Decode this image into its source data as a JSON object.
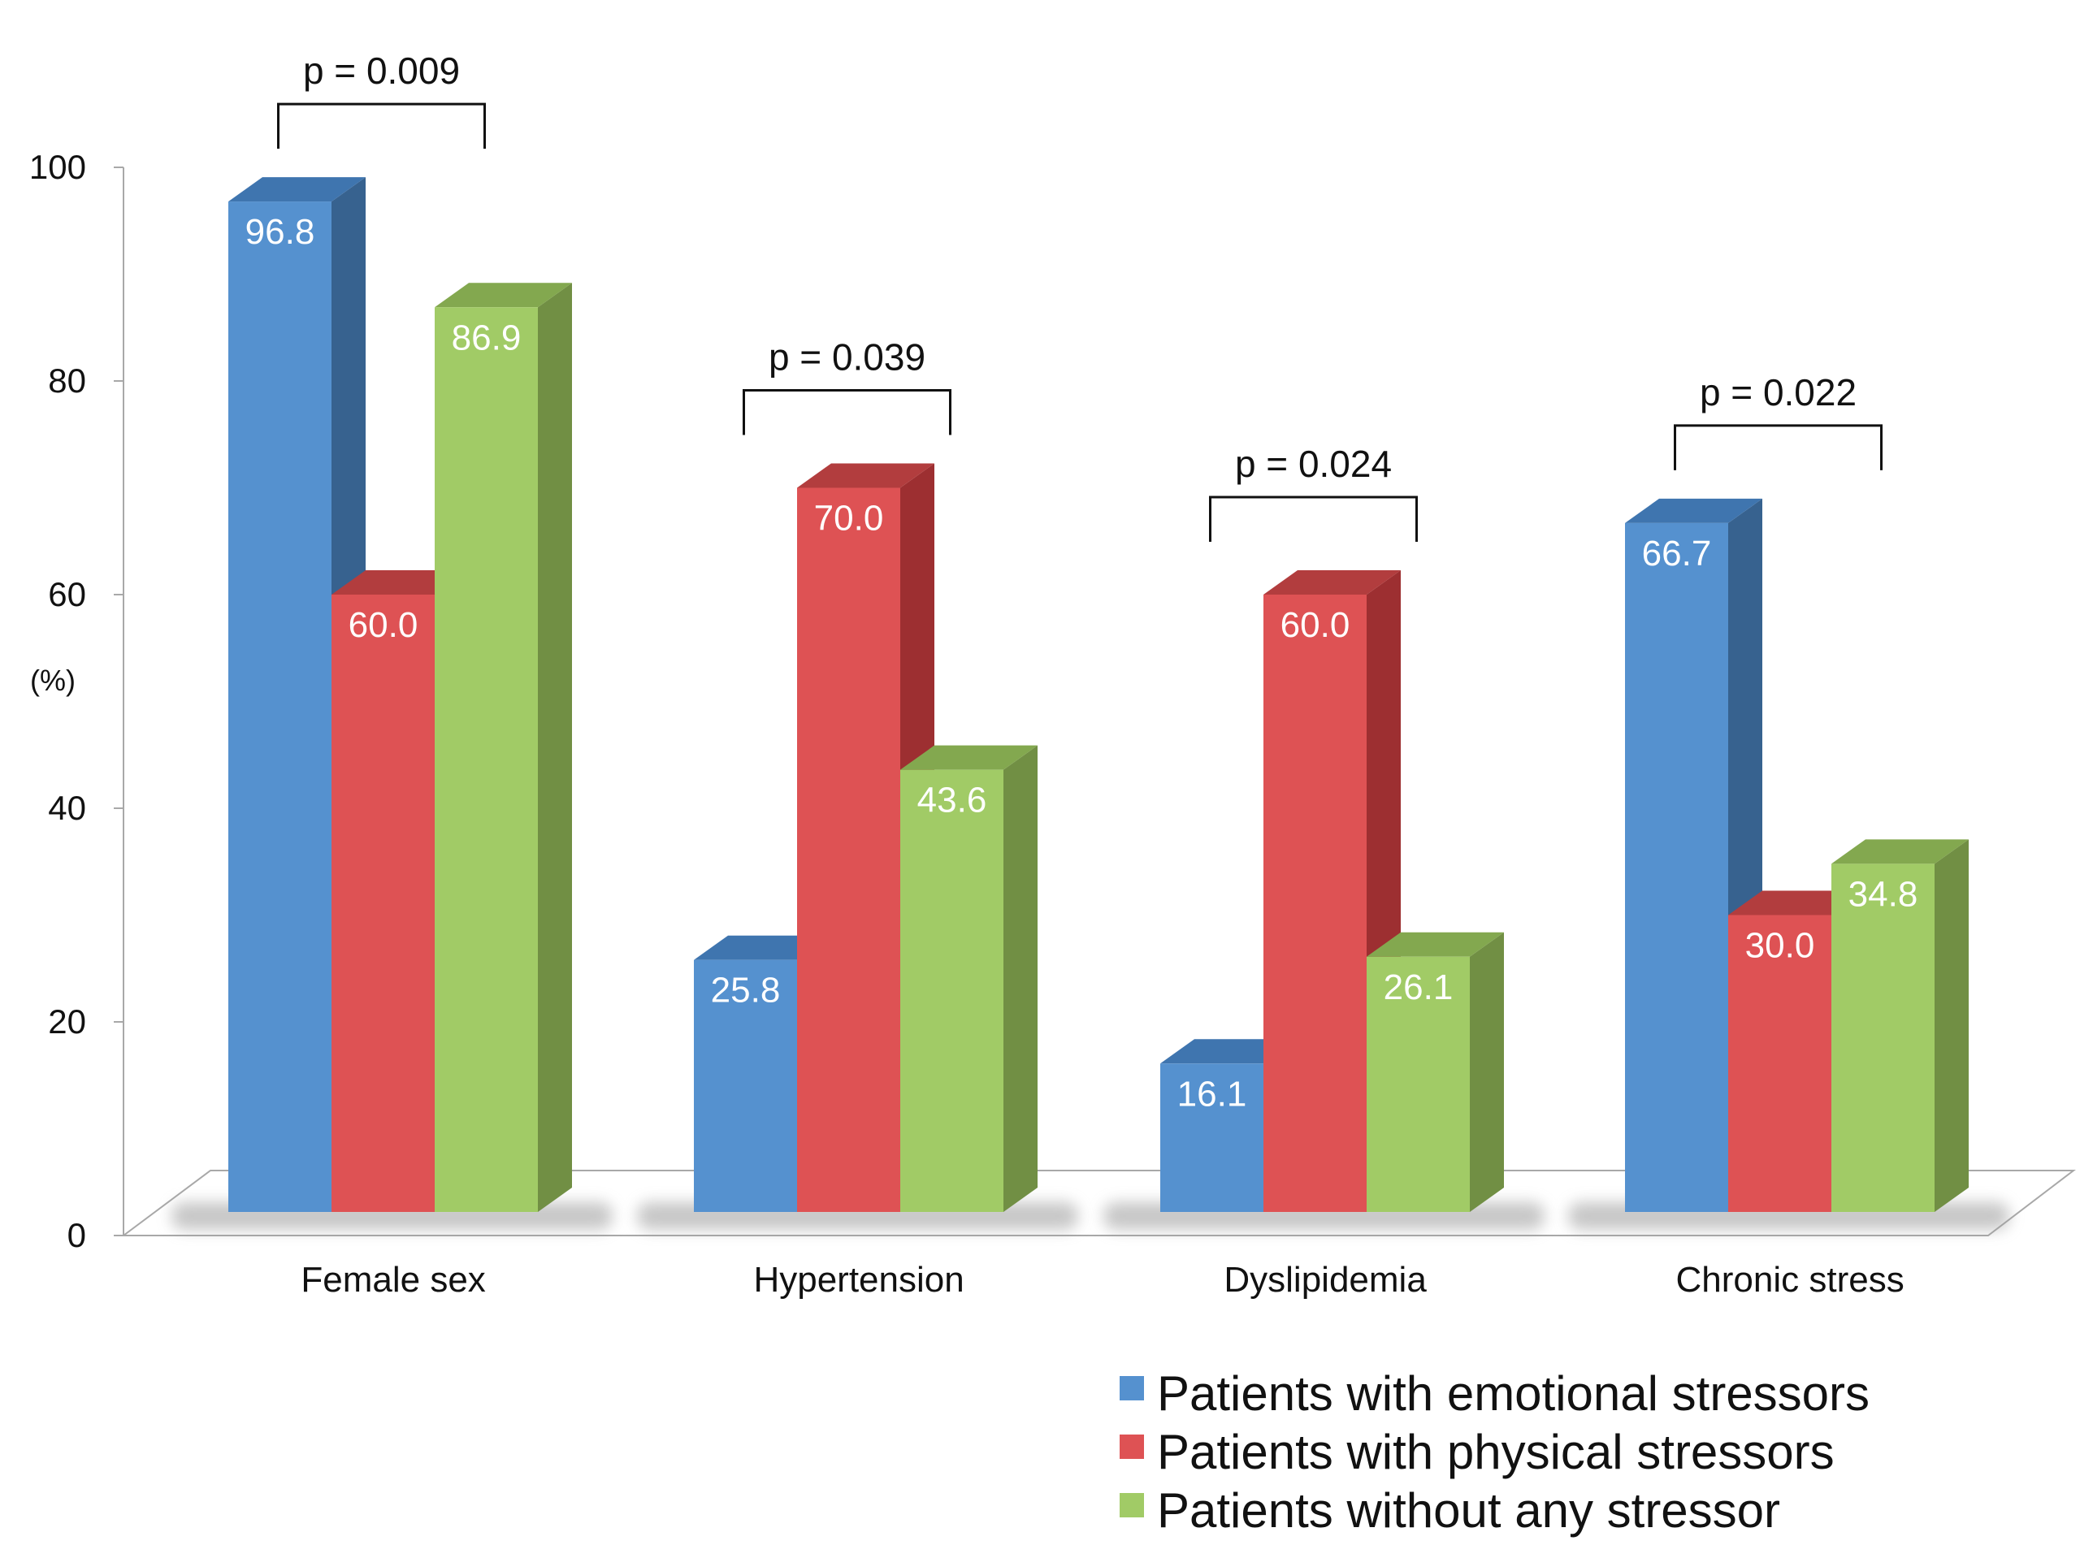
{
  "chart_data": {
    "type": "bar",
    "categories": [
      "Female sex",
      "Hypertension",
      "Dyslipidemia",
      "Chronic stress"
    ],
    "series": [
      {
        "name": "Patients with emotional stressors",
        "color": "#5591cf",
        "top_color": "#3f75af",
        "side_color": "#37628f",
        "values": [
          96.8,
          25.8,
          16.1,
          66.7
        ]
      },
      {
        "name": "Patients with physical stressors",
        "color": "#de5254",
        "top_color": "#b23d3e",
        "side_color": "#9d2f31",
        "values": [
          60.0,
          70.0,
          60.0,
          30.0
        ]
      },
      {
        "name": "Patients without any stressor",
        "color": "#a1cb66",
        "top_color": "#83a84f",
        "side_color": "#718f44",
        "values": [
          86.9,
          43.6,
          26.1,
          34.8
        ]
      }
    ],
    "data_labels": [
      [
        "96.8",
        "25.8",
        "16.1",
        "66.7"
      ],
      [
        "60.0",
        "70.0",
        "60.0",
        "30.0"
      ],
      [
        "86.9",
        "43.6",
        "26.1",
        "34.8"
      ]
    ],
    "ylabel": "(%)",
    "ylim": [
      0,
      100
    ],
    "yticks": [
      0,
      20,
      40,
      60,
      80,
      100
    ],
    "yticks_labels": [
      "0",
      "20",
      "40",
      "60",
      "80",
      "100"
    ],
    "annotations": [
      {
        "category": "Female sex",
        "text": "p = 0.009"
      },
      {
        "category": "Hypertension",
        "text": "p = 0.039"
      },
      {
        "category": "Dyslipidemia",
        "text": "p = 0.024"
      },
      {
        "category": "Chronic stress",
        "text": "p = 0.022"
      }
    ],
    "legend": {
      "position": "bottom-right"
    },
    "grid": false,
    "style": "3d-column"
  }
}
